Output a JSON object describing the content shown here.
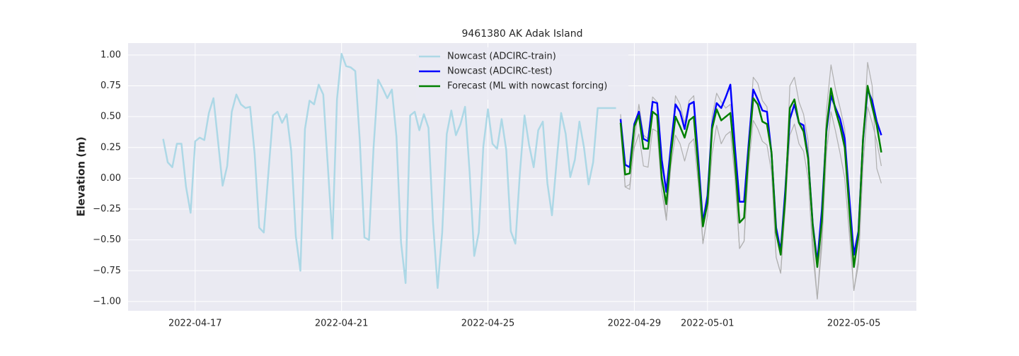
{
  "chart_data": {
    "type": "line",
    "title": "9461380 AK Adak Island",
    "ylabel": "Elevation (m)",
    "xlim": [
      "2022-04-15T04:00",
      "2022-05-06T17:00"
    ],
    "ylim": [
      -1.075,
      1.097
    ],
    "xticks": [
      "2022-04-17",
      "2022-04-21",
      "2022-04-25",
      "2022-04-29",
      "2022-05-01",
      "2022-05-05"
    ],
    "yticks": [
      {
        "value": 1,
        "label": "1.00"
      },
      {
        "value": 0.75,
        "label": "0.75"
      },
      {
        "value": 0.5,
        "label": "0.50"
      },
      {
        "value": 0.25,
        "label": "0.25"
      },
      {
        "value": 0,
        "label": "0.00"
      },
      {
        "value": -0.25,
        "label": "−0.25"
      },
      {
        "value": -0.5,
        "label": "−0.50"
      },
      {
        "value": -0.75,
        "label": "−0.75"
      },
      {
        "value": -1,
        "label": "−1.00"
      }
    ],
    "grid": true,
    "legend": "upper center",
    "series": [
      {
        "name": "Nowcast (ADCIRC-train)",
        "color": "#add8e6",
        "width": 2.5,
        "x": [
          "2022-04-16T03:00",
          "2022-04-16T06:00",
          "2022-04-16T09:00",
          "2022-04-16T12:00",
          "2022-04-16T15:00",
          "2022-04-16T18:00",
          "2022-04-16T21:00",
          "2022-04-17T00:00",
          "2022-04-17T03:00",
          "2022-04-17T06:00",
          "2022-04-17T09:00",
          "2022-04-17T12:00",
          "2022-04-17T15:00",
          "2022-04-17T18:00",
          "2022-04-17T21:00",
          "2022-04-18T00:00",
          "2022-04-18T03:00",
          "2022-04-18T06:00",
          "2022-04-18T09:00",
          "2022-04-18T12:00",
          "2022-04-18T15:00",
          "2022-04-18T18:00",
          "2022-04-18T21:00",
          "2022-04-19T00:00",
          "2022-04-19T03:00",
          "2022-04-19T06:00",
          "2022-04-19T09:00",
          "2022-04-19T12:00",
          "2022-04-19T15:00",
          "2022-04-19T18:00",
          "2022-04-19T21:00",
          "2022-04-20T00:00",
          "2022-04-20T03:00",
          "2022-04-20T06:00",
          "2022-04-20T09:00",
          "2022-04-20T12:00",
          "2022-04-20T15:00",
          "2022-04-20T18:00",
          "2022-04-20T21:00",
          "2022-04-21T00:00",
          "2022-04-21T03:00",
          "2022-04-21T06:00",
          "2022-04-21T09:00",
          "2022-04-21T12:00",
          "2022-04-21T15:00",
          "2022-04-21T18:00",
          "2022-04-21T21:00",
          "2022-04-22T00:00",
          "2022-04-22T03:00",
          "2022-04-22T06:00",
          "2022-04-22T09:00",
          "2022-04-22T12:00",
          "2022-04-22T15:00",
          "2022-04-22T18:00",
          "2022-04-22T21:00",
          "2022-04-23T00:00",
          "2022-04-23T03:00",
          "2022-04-23T06:00",
          "2022-04-23T09:00",
          "2022-04-23T12:00",
          "2022-04-23T15:00",
          "2022-04-23T18:00",
          "2022-04-23T21:00",
          "2022-04-24T00:00",
          "2022-04-24T03:00",
          "2022-04-24T06:00",
          "2022-04-24T09:00",
          "2022-04-24T12:00",
          "2022-04-24T15:00",
          "2022-04-24T18:00",
          "2022-04-24T21:00",
          "2022-04-25T00:00",
          "2022-04-25T03:00",
          "2022-04-25T06:00",
          "2022-04-25T09:00",
          "2022-04-25T12:00",
          "2022-04-25T15:00",
          "2022-04-25T18:00",
          "2022-04-25T21:00",
          "2022-04-26T00:00",
          "2022-04-26T03:00",
          "2022-04-26T06:00",
          "2022-04-26T09:00",
          "2022-04-26T12:00",
          "2022-04-26T15:00",
          "2022-04-26T18:00",
          "2022-04-26T21:00",
          "2022-04-27T00:00",
          "2022-04-27T03:00",
          "2022-04-27T06:00",
          "2022-04-27T09:00",
          "2022-04-27T12:00",
          "2022-04-27T15:00",
          "2022-04-27T18:00",
          "2022-04-27T21:00",
          "2022-04-28T00:00",
          "2022-04-28T03:00",
          "2022-04-28T06:00",
          "2022-04-28T09:00",
          "2022-04-28T12:00"
        ],
        "values": [
          0.32,
          0.13,
          0.09,
          0.28,
          0.28,
          -0.07,
          -0.28,
          0.3,
          0.33,
          0.31,
          0.53,
          0.65,
          0.3,
          -0.06,
          0.1,
          0.54,
          0.68,
          0.6,
          0.57,
          0.58,
          0.2,
          -0.4,
          -0.44,
          0.04,
          0.51,
          0.54,
          0.45,
          0.52,
          0.22,
          -0.47,
          -0.75,
          0.4,
          0.63,
          0.6,
          0.76,
          0.68,
          0.1,
          -0.49,
          0.64,
          1.01,
          0.91,
          0.9,
          0.87,
          0.3,
          -0.48,
          -0.5,
          0.25,
          0.8,
          0.73,
          0.65,
          0.72,
          0.34,
          -0.52,
          -0.85,
          0.51,
          0.54,
          0.39,
          0.52,
          0.41,
          -0.36,
          -0.89,
          -0.44,
          0.36,
          0.55,
          0.35,
          0.44,
          0.58,
          0.05,
          -0.63,
          -0.44,
          0.26,
          0.56,
          0.28,
          0.24,
          0.48,
          0.23,
          -0.43,
          -0.53,
          0.05,
          0.51,
          0.27,
          0.09,
          0.39,
          0.46,
          -0.04,
          -0.3,
          0.13,
          0.53,
          0.36,
          0.01,
          0.15,
          0.46,
          0.25,
          -0.05,
          0.13,
          0.57,
          0.57,
          0.57,
          0.57,
          0.57
        ]
      },
      {
        "color": "#b0b0b0",
        "width": 1.2,
        "x": [
          "2022-04-28T15:00",
          "2022-04-28T18:00",
          "2022-04-28T21:00",
          "2022-04-29T00:00",
          "2022-04-29T03:00",
          "2022-04-29T06:00",
          "2022-04-29T09:00",
          "2022-04-29T12:00",
          "2022-04-29T15:00",
          "2022-04-29T18:00",
          "2022-04-29T21:00",
          "2022-04-30T00:00",
          "2022-04-30T03:00",
          "2022-04-30T06:00",
          "2022-04-30T09:00",
          "2022-04-30T12:00",
          "2022-04-30T15:00",
          "2022-04-30T18:00",
          "2022-04-30T21:00",
          "2022-05-01T00:00",
          "2022-05-01T03:00",
          "2022-05-01T06:00",
          "2022-05-01T09:00",
          "2022-05-01T12:00",
          "2022-05-01T15:00",
          "2022-05-01T18:00",
          "2022-05-01T21:00",
          "2022-05-02T00:00",
          "2022-05-02T03:00",
          "2022-05-02T06:00",
          "2022-05-02T09:00",
          "2022-05-02T12:00",
          "2022-05-02T15:00",
          "2022-05-02T18:00",
          "2022-05-02T21:00",
          "2022-05-03T00:00",
          "2022-05-03T03:00",
          "2022-05-03T06:00",
          "2022-05-03T09:00",
          "2022-05-03T12:00",
          "2022-05-03T15:00",
          "2022-05-03T18:00",
          "2022-05-03T21:00",
          "2022-05-04T00:00",
          "2022-05-04T03:00",
          "2022-05-04T06:00",
          "2022-05-04T09:00",
          "2022-05-04T12:00",
          "2022-05-04T15:00",
          "2022-05-04T18:00",
          "2022-05-04T21:00",
          "2022-05-05T00:00",
          "2022-05-05T03:00",
          "2022-05-05T06:00",
          "2022-05-05T09:00",
          "2022-05-05T12:00",
          "2022-05-05T15:00",
          "2022-05-05T18:00"
        ],
        "values": [
          0.52,
          -0.07,
          -0.09,
          0.3,
          0.6,
          0.35,
          0.32,
          0.66,
          0.62,
          0.05,
          -0.34,
          0.2,
          0.67,
          0.6,
          0.45,
          0.63,
          0.67,
          0.1,
          -0.53,
          -0.3,
          0.5,
          0.69,
          0.62,
          0.57,
          0.6,
          0.05,
          -0.57,
          -0.51,
          0.3,
          0.82,
          0.77,
          0.63,
          0.58,
          0.15,
          -0.64,
          -0.77,
          -0.2,
          0.75,
          0.82,
          0.62,
          0.52,
          0.3,
          -0.5,
          -0.98,
          -0.45,
          0.55,
          0.92,
          0.72,
          0.57,
          0.4,
          -0.35,
          -0.91,
          -0.65,
          0.3,
          0.94,
          0.75,
          0.08,
          -0.04
        ]
      },
      {
        "color": "#b0b0b0",
        "width": 1.2,
        "x": [
          "2022-04-28T15:00",
          "2022-04-28T18:00",
          "2022-04-28T21:00",
          "2022-04-29T00:00",
          "2022-04-29T03:00",
          "2022-04-29T06:00",
          "2022-04-29T09:00",
          "2022-04-29T12:00",
          "2022-04-29T15:00",
          "2022-04-29T18:00",
          "2022-04-29T21:00",
          "2022-04-30T00:00",
          "2022-04-30T03:00",
          "2022-04-30T06:00",
          "2022-04-30T09:00",
          "2022-04-30T12:00",
          "2022-04-30T15:00",
          "2022-04-30T18:00",
          "2022-04-30T21:00",
          "2022-05-01T00:00",
          "2022-05-01T03:00",
          "2022-05-01T06:00",
          "2022-05-01T09:00",
          "2022-05-01T12:00",
          "2022-05-01T15:00",
          "2022-05-01T18:00",
          "2022-05-01T21:00",
          "2022-05-02T00:00",
          "2022-05-02T03:00",
          "2022-05-02T06:00",
          "2022-05-02T09:00",
          "2022-05-02T12:00",
          "2022-05-02T15:00",
          "2022-05-02T18:00",
          "2022-05-02T21:00",
          "2022-05-03T00:00",
          "2022-05-03T03:00",
          "2022-05-03T06:00",
          "2022-05-03T09:00",
          "2022-05-03T12:00",
          "2022-05-03T15:00",
          "2022-05-03T18:00",
          "2022-05-03T21:00",
          "2022-05-04T00:00",
          "2022-05-04T03:00",
          "2022-05-04T06:00",
          "2022-05-04T09:00",
          "2022-05-04T12:00",
          "2022-05-04T15:00",
          "2022-05-04T18:00",
          "2022-05-04T21:00",
          "2022-05-05T00:00",
          "2022-05-05T03:00",
          "2022-05-05T06:00",
          "2022-05-05T09:00",
          "2022-05-05T12:00",
          "2022-05-05T15:00",
          "2022-05-05T18:00"
        ],
        "values": [
          0.4,
          -0.07,
          -0.05,
          0.25,
          0.36,
          0.1,
          0.09,
          0.4,
          0.38,
          -0.1,
          -0.34,
          0.1,
          0.35,
          0.28,
          0.14,
          0.28,
          0.32,
          -0.05,
          -0.53,
          -0.3,
          0.2,
          0.43,
          0.28,
          0.35,
          0.38,
          0.0,
          -0.57,
          -0.51,
          0.1,
          0.47,
          0.4,
          0.3,
          0.27,
          0.05,
          -0.64,
          -0.77,
          -0.25,
          0.35,
          0.44,
          0.28,
          0.22,
          0.0,
          -0.6,
          -0.98,
          -0.55,
          0.2,
          0.54,
          0.38,
          0.2,
          0.0,
          -0.45,
          -0.91,
          -0.7,
          0.1,
          0.58,
          0.45,
          0.3,
          0.1
        ]
      },
      {
        "name": "Nowcast (ADCIRC-test)",
        "color": "#0000ff",
        "width": 2.5,
        "x": [
          "2022-04-28T15:00",
          "2022-04-28T18:00",
          "2022-04-28T21:00",
          "2022-04-29T00:00",
          "2022-04-29T03:00",
          "2022-04-29T06:00",
          "2022-04-29T09:00",
          "2022-04-29T12:00",
          "2022-04-29T15:00",
          "2022-04-29T18:00",
          "2022-04-29T21:00",
          "2022-04-30T00:00",
          "2022-04-30T03:00",
          "2022-04-30T06:00",
          "2022-04-30T09:00",
          "2022-04-30T12:00",
          "2022-04-30T15:00",
          "2022-04-30T18:00",
          "2022-04-30T21:00",
          "2022-05-01T00:00",
          "2022-05-01T03:00",
          "2022-05-01T06:00",
          "2022-05-01T09:00",
          "2022-05-01T12:00",
          "2022-05-01T15:00",
          "2022-05-01T18:00",
          "2022-05-01T21:00",
          "2022-05-02T00:00",
          "2022-05-02T03:00",
          "2022-05-02T06:00",
          "2022-05-02T09:00",
          "2022-05-02T12:00",
          "2022-05-02T15:00",
          "2022-05-02T18:00",
          "2022-05-02T21:00",
          "2022-05-03T00:00",
          "2022-05-03T03:00",
          "2022-05-03T06:00",
          "2022-05-03T09:00",
          "2022-05-03T12:00",
          "2022-05-03T15:00",
          "2022-05-03T18:00",
          "2022-05-03T21:00",
          "2022-05-04T00:00",
          "2022-05-04T03:00",
          "2022-05-04T06:00",
          "2022-05-04T09:00",
          "2022-05-04T12:00",
          "2022-05-04T15:00",
          "2022-05-04T18:00",
          "2022-05-04T21:00",
          "2022-05-05T00:00",
          "2022-05-05T03:00",
          "2022-05-05T06:00",
          "2022-05-05T09:00",
          "2022-05-05T12:00",
          "2022-05-05T15:00",
          "2022-05-05T18:00"
        ],
        "values": [
          0.48,
          0.11,
          0.09,
          0.44,
          0.54,
          0.32,
          0.3,
          0.62,
          0.61,
          0.15,
          -0.11,
          0.26,
          0.6,
          0.54,
          0.4,
          0.6,
          0.62,
          0.15,
          -0.36,
          -0.14,
          0.43,
          0.61,
          0.57,
          0.66,
          0.76,
          0.25,
          -0.19,
          -0.19,
          0.28,
          0.72,
          0.64,
          0.55,
          0.54,
          0.2,
          -0.4,
          -0.59,
          -0.1,
          0.48,
          0.6,
          0.45,
          0.43,
          0.17,
          -0.37,
          -0.68,
          -0.26,
          0.38,
          0.67,
          0.57,
          0.48,
          0.32,
          -0.16,
          -0.62,
          -0.43,
          0.31,
          0.72,
          0.63,
          0.46,
          0.35
        ]
      },
      {
        "name": "Forecast (ML with nowcast forcing)",
        "color": "#008000",
        "width": 2.5,
        "x": [
          "2022-04-28T15:00",
          "2022-04-28T18:00",
          "2022-04-28T21:00",
          "2022-04-29T00:00",
          "2022-04-29T03:00",
          "2022-04-29T06:00",
          "2022-04-29T09:00",
          "2022-04-29T12:00",
          "2022-04-29T15:00",
          "2022-04-29T18:00",
          "2022-04-29T21:00",
          "2022-04-30T00:00",
          "2022-04-30T03:00",
          "2022-04-30T06:00",
          "2022-04-30T09:00",
          "2022-04-30T12:00",
          "2022-04-30T15:00",
          "2022-04-30T18:00",
          "2022-04-30T21:00",
          "2022-05-01T00:00",
          "2022-05-01T03:00",
          "2022-05-01T06:00",
          "2022-05-01T09:00",
          "2022-05-01T12:00",
          "2022-05-01T15:00",
          "2022-05-01T18:00",
          "2022-05-01T21:00",
          "2022-05-02T00:00",
          "2022-05-02T03:00",
          "2022-05-02T06:00",
          "2022-05-02T09:00",
          "2022-05-02T12:00",
          "2022-05-02T15:00",
          "2022-05-02T18:00",
          "2022-05-02T21:00",
          "2022-05-03T00:00",
          "2022-05-03T03:00",
          "2022-05-03T06:00",
          "2022-05-03T09:00",
          "2022-05-03T12:00",
          "2022-05-03T15:00",
          "2022-05-03T18:00",
          "2022-05-03T21:00",
          "2022-05-04T00:00",
          "2022-05-04T03:00",
          "2022-05-04T06:00",
          "2022-05-04T09:00",
          "2022-05-04T12:00",
          "2022-05-04T15:00",
          "2022-05-04T18:00",
          "2022-05-04T21:00",
          "2022-05-05T00:00",
          "2022-05-05T03:00",
          "2022-05-05T06:00",
          "2022-05-05T09:00",
          "2022-05-05T12:00",
          "2022-05-05T15:00",
          "2022-05-05T18:00"
        ],
        "values": [
          0.45,
          0.03,
          0.04,
          0.42,
          0.51,
          0.24,
          0.24,
          0.54,
          0.51,
          0.0,
          -0.21,
          0.19,
          0.5,
          0.42,
          0.33,
          0.47,
          0.5,
          0.07,
          -0.39,
          -0.2,
          0.4,
          0.56,
          0.47,
          0.5,
          0.53,
          0.14,
          -0.36,
          -0.32,
          0.22,
          0.65,
          0.6,
          0.46,
          0.44,
          0.21,
          -0.44,
          -0.62,
          -0.16,
          0.57,
          0.64,
          0.45,
          0.38,
          0.16,
          -0.38,
          -0.72,
          -0.35,
          0.4,
          0.73,
          0.55,
          0.42,
          0.25,
          -0.25,
          -0.72,
          -0.46,
          0.32,
          0.75,
          0.58,
          0.43,
          0.21
        ]
      }
    ]
  }
}
